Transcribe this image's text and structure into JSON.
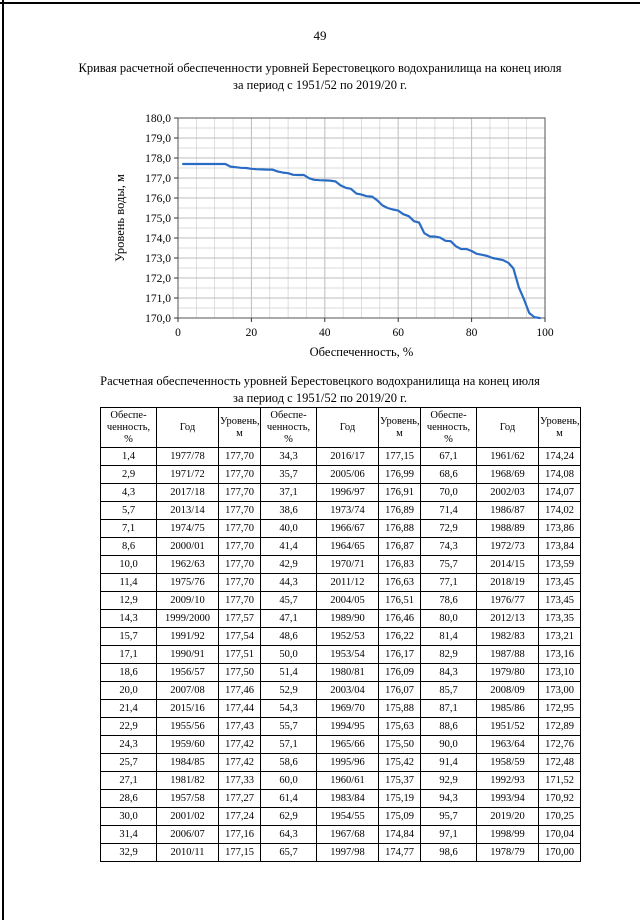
{
  "page": {
    "number": "49"
  },
  "chart": {
    "title_lines": [
      "Кривая расчетной обеспеченности уровней Берестовецкого водохранилища на конец июля",
      "за период с 1951/52 по 2019/20 г."
    ]
  },
  "chart_data": {
    "type": "line",
    "title": "Кривая расчетной обеспеченности уровней Берестовецкого водохранилища на конец июля за период с 1951/52 по 2019/20 г.",
    "xlabel": "Обеспеченность, %",
    "ylabel": "Уровень воды, м",
    "xlim": [
      0,
      100
    ],
    "ylim": [
      170,
      180
    ],
    "grid": true,
    "legend": "none",
    "line_color": "#2a6cc4",
    "x_ticks": [
      0,
      20,
      40,
      60,
      80,
      100
    ],
    "x_tick_labels": [
      "0",
      "20",
      "40",
      "60",
      "80",
      "100"
    ],
    "y_ticks": [
      170,
      171,
      172,
      173,
      174,
      175,
      176,
      177,
      178,
      179,
      180
    ],
    "y_tick_labels": [
      "170,0",
      "171,0",
      "172,0",
      "173,0",
      "174,0",
      "175,0",
      "176,0",
      "177,0",
      "178,0",
      "179,0",
      "180,0"
    ],
    "x": [
      1.4,
      2.9,
      4.3,
      5.7,
      7.1,
      8.6,
      10.0,
      11.4,
      12.9,
      14.3,
      15.7,
      17.1,
      18.6,
      20.0,
      21.4,
      22.9,
      24.3,
      25.7,
      27.1,
      28.6,
      30.0,
      31.4,
      32.9,
      34.3,
      35.7,
      37.1,
      38.6,
      40.0,
      41.4,
      42.9,
      44.3,
      45.7,
      47.1,
      48.6,
      50.0,
      51.4,
      52.9,
      54.3,
      55.7,
      57.1,
      58.6,
      60.0,
      61.4,
      62.9,
      64.3,
      65.7,
      67.1,
      68.6,
      70.0,
      71.4,
      72.9,
      74.3,
      75.7,
      77.1,
      78.6,
      80.0,
      81.4,
      82.9,
      84.3,
      85.7,
      87.1,
      88.6,
      90.0,
      91.4,
      92.9,
      94.3,
      95.7,
      97.1,
      98.6
    ],
    "y": [
      177.7,
      177.7,
      177.7,
      177.7,
      177.7,
      177.7,
      177.7,
      177.7,
      177.7,
      177.57,
      177.54,
      177.51,
      177.5,
      177.46,
      177.44,
      177.43,
      177.42,
      177.42,
      177.33,
      177.27,
      177.24,
      177.16,
      177.15,
      177.15,
      176.99,
      176.91,
      176.89,
      176.88,
      176.87,
      176.83,
      176.63,
      176.51,
      176.46,
      176.22,
      176.17,
      176.09,
      176.07,
      175.88,
      175.63,
      175.5,
      175.42,
      175.37,
      175.19,
      175.09,
      174.84,
      174.77,
      174.24,
      174.08,
      174.07,
      174.02,
      173.86,
      173.84,
      173.59,
      173.45,
      173.45,
      173.35,
      173.21,
      173.16,
      173.1,
      173.0,
      172.95,
      172.89,
      172.76,
      172.48,
      171.52,
      170.92,
      170.25,
      170.04,
      170.0
    ]
  },
  "table": {
    "title_lines": [
      "Расчетная обеспеченность уровней Берестовецкого водохранилища на конец июля",
      "за период с 1951/52 по 2019/20 г."
    ],
    "headers": [
      "Обеспе-ченность, %",
      "Год",
      "Уровень, м",
      "Обеспе-ченность, %",
      "Год",
      "Уровень, м",
      "Обеспе-ченность, %",
      "Год",
      "Уровень, м"
    ],
    "rows": [
      [
        "1,4",
        "1977/78",
        "177,70",
        "34,3",
        "2016/17",
        "177,15",
        "67,1",
        "1961/62",
        "174,24"
      ],
      [
        "2,9",
        "1971/72",
        "177,70",
        "35,7",
        "2005/06",
        "176,99",
        "68,6",
        "1968/69",
        "174,08"
      ],
      [
        "4,3",
        "2017/18",
        "177,70",
        "37,1",
        "1996/97",
        "176,91",
        "70,0",
        "2002/03",
        "174,07"
      ],
      [
        "5,7",
        "2013/14",
        "177,70",
        "38,6",
        "1973/74",
        "176,89",
        "71,4",
        "1986/87",
        "174,02"
      ],
      [
        "7,1",
        "1974/75",
        "177,70",
        "40,0",
        "1966/67",
        "176,88",
        "72,9",
        "1988/89",
        "173,86"
      ],
      [
        "8,6",
        "2000/01",
        "177,70",
        "41,4",
        "1964/65",
        "176,87",
        "74,3",
        "1972/73",
        "173,84"
      ],
      [
        "10,0",
        "1962/63",
        "177,70",
        "42,9",
        "1970/71",
        "176,83",
        "75,7",
        "2014/15",
        "173,59"
      ],
      [
        "11,4",
        "1975/76",
        "177,70",
        "44,3",
        "2011/12",
        "176,63",
        "77,1",
        "2018/19",
        "173,45"
      ],
      [
        "12,9",
        "2009/10",
        "177,70",
        "45,7",
        "2004/05",
        "176,51",
        "78,6",
        "1976/77",
        "173,45"
      ],
      [
        "14,3",
        "1999/2000",
        "177,57",
        "47,1",
        "1989/90",
        "176,46",
        "80,0",
        "2012/13",
        "173,35"
      ],
      [
        "15,7",
        "1991/92",
        "177,54",
        "48,6",
        "1952/53",
        "176,22",
        "81,4",
        "1982/83",
        "173,21"
      ],
      [
        "17,1",
        "1990/91",
        "177,51",
        "50,0",
        "1953/54",
        "176,17",
        "82,9",
        "1987/88",
        "173,16"
      ],
      [
        "18,6",
        "1956/57",
        "177,50",
        "51,4",
        "1980/81",
        "176,09",
        "84,3",
        "1979/80",
        "173,10"
      ],
      [
        "20,0",
        "2007/08",
        "177,46",
        "52,9",
        "2003/04",
        "176,07",
        "85,7",
        "2008/09",
        "173,00"
      ],
      [
        "21,4",
        "2015/16",
        "177,44",
        "54,3",
        "1969/70",
        "175,88",
        "87,1",
        "1985/86",
        "172,95"
      ],
      [
        "22,9",
        "1955/56",
        "177,43",
        "55,7",
        "1994/95",
        "175,63",
        "88,6",
        "1951/52",
        "172,89"
      ],
      [
        "24,3",
        "1959/60",
        "177,42",
        "57,1",
        "1965/66",
        "175,50",
        "90,0",
        "1963/64",
        "172,76"
      ],
      [
        "25,7",
        "1984/85",
        "177,42",
        "58,6",
        "1995/96",
        "175,42",
        "91,4",
        "1958/59",
        "172,48"
      ],
      [
        "27,1",
        "1981/82",
        "177,33",
        "60,0",
        "1960/61",
        "175,37",
        "92,9",
        "1992/93",
        "171,52"
      ],
      [
        "28,6",
        "1957/58",
        "177,27",
        "61,4",
        "1983/84",
        "175,19",
        "94,3",
        "1993/94",
        "170,92"
      ],
      [
        "30,0",
        "2001/02",
        "177,24",
        "62,9",
        "1954/55",
        "175,09",
        "95,7",
        "2019/20",
        "170,25"
      ],
      [
        "31,4",
        "2006/07",
        "177,16",
        "64,3",
        "1967/68",
        "174,84",
        "97,1",
        "1998/99",
        "170,04"
      ],
      [
        "32,9",
        "2010/11",
        "177,15",
        "65,7",
        "1997/98",
        "174,77",
        "98,6",
        "1978/79",
        "170,00"
      ]
    ]
  }
}
